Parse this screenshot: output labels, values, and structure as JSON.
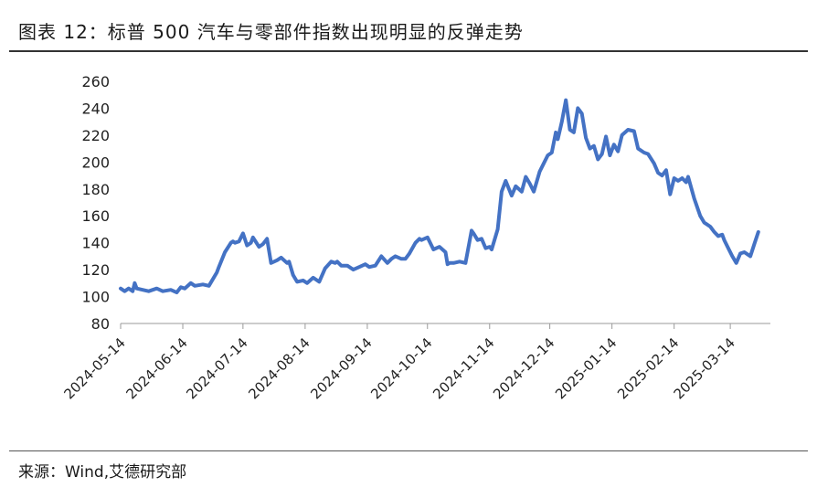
{
  "figure": {
    "title": "图表 12：标普 500 汽车与零部件指数出现明显的反弹走势",
    "source": "来源：Wind,艾德研究部"
  },
  "chart_data": {
    "type": "line",
    "title": "图表 12：标普 500 汽车与零部件指数出现明显的反弹走势",
    "xlabel": "",
    "ylabel": "",
    "ylim": [
      80,
      260
    ],
    "yticks": [
      80,
      100,
      120,
      140,
      160,
      180,
      200,
      220,
      240,
      260
    ],
    "xticks": [
      "2024-05-14",
      "2024-06-14",
      "2024-07-14",
      "2024-08-14",
      "2024-09-14",
      "2024-10-14",
      "2024-11-14",
      "2024-12-14",
      "2025-01-14",
      "2025-02-14",
      "2025-03-14"
    ],
    "grid": false,
    "legend": "none",
    "line_color": "#4472C4",
    "series": [
      {
        "x": [
          "2024-05-14",
          "2024-05-16",
          "2024-05-18",
          "2024-05-20",
          "2024-05-21",
          "2024-05-22",
          "2024-05-25",
          "2024-05-28",
          "2024-06-01",
          "2024-06-04",
          "2024-06-08",
          "2024-06-11",
          "2024-06-13",
          "2024-06-15",
          "2024-06-18",
          "2024-06-20",
          "2024-06-24",
          "2024-06-27",
          "2024-07-01",
          "2024-07-02",
          "2024-07-05",
          "2024-07-08",
          "2024-07-09",
          "2024-07-10",
          "2024-07-12",
          "2024-07-14",
          "2024-07-16",
          "2024-07-18",
          "2024-07-19",
          "2024-07-22",
          "2024-07-24",
          "2024-07-26",
          "2024-07-28",
          "2024-07-31",
          "2024-08-02",
          "2024-08-05",
          "2024-08-06",
          "2024-08-08",
          "2024-08-10",
          "2024-08-13",
          "2024-08-15",
          "2024-08-18",
          "2024-08-21",
          "2024-08-24",
          "2024-08-27",
          "2024-08-29",
          "2024-08-30",
          "2024-09-01",
          "2024-09-04",
          "2024-09-07",
          "2024-09-10",
          "2024-09-13",
          "2024-09-15",
          "2024-09-18",
          "2024-09-21",
          "2024-09-24",
          "2024-09-26",
          "2024-09-28",
          "2024-10-01",
          "2024-10-03",
          "2024-10-05",
          "2024-10-08",
          "2024-10-10",
          "2024-10-11",
          "2024-10-14",
          "2024-10-17",
          "2024-10-20",
          "2024-10-23",
          "2024-10-24",
          "2024-10-25",
          "2024-10-27",
          "2024-10-30",
          "2024-11-02",
          "2024-11-05",
          "2024-11-06",
          "2024-11-08",
          "2024-11-10",
          "2024-11-12",
          "2024-11-14",
          "2024-11-15",
          "2024-11-18",
          "2024-11-20",
          "2024-11-22",
          "2024-11-25",
          "2024-11-27",
          "2024-11-30",
          "2024-12-02",
          "2024-12-04",
          "2024-12-06",
          "2024-12-09",
          "2024-12-11",
          "2024-12-13",
          "2024-12-15",
          "2024-12-17",
          "2024-12-18",
          "2024-12-20",
          "2024-12-22",
          "2024-12-24",
          "2024-12-26",
          "2024-12-28",
          "2024-12-30",
          "2025-01-01",
          "2025-01-03",
          "2025-01-05",
          "2025-01-07",
          "2025-01-09",
          "2025-01-11",
          "2025-01-13",
          "2025-01-15",
          "2025-01-17",
          "2025-01-19",
          "2025-01-22",
          "2025-01-25",
          "2025-01-27",
          "2025-01-30",
          "2025-02-01",
          "2025-02-04",
          "2025-02-06",
          "2025-02-08",
          "2025-02-10",
          "2025-02-12",
          "2025-02-14",
          "2025-02-16",
          "2025-02-18",
          "2025-02-20",
          "2025-02-21",
          "2025-02-24",
          "2025-02-27",
          "2025-03-01",
          "2025-03-04",
          "2025-03-06",
          "2025-03-08",
          "2025-03-10",
          "2025-03-11",
          "2025-03-13",
          "2025-03-15",
          "2025-03-17",
          "2025-03-19",
          "2025-03-21",
          "2025-03-24",
          "2025-03-26",
          "2025-03-28"
        ],
        "values": [
          106,
          104,
          106,
          104,
          110,
          106,
          105,
          104,
          106,
          104,
          105,
          103,
          107,
          106,
          110,
          108,
          109,
          108,
          118,
          122,
          133,
          140,
          141,
          140,
          141,
          147,
          138,
          140,
          144,
          137,
          139,
          143,
          125,
          127,
          129,
          125,
          126,
          116,
          111,
          112,
          110,
          114,
          111,
          121,
          126,
          125,
          126,
          123,
          123,
          120,
          122,
          124,
          122,
          123,
          130,
          125,
          128,
          130,
          128,
          128,
          132,
          140,
          143,
          142,
          144,
          135,
          137,
          133,
          124,
          125,
          125,
          126,
          125,
          149,
          147,
          142,
          143,
          136,
          137,
          135,
          150,
          178,
          186,
          175,
          182,
          178,
          189,
          184,
          178,
          193,
          199,
          205,
          207,
          222,
          217,
          230,
          246,
          224,
          222,
          240,
          236,
          218,
          210,
          212,
          202,
          206,
          219,
          205,
          213,
          208,
          220,
          224,
          223,
          210,
          207,
          206,
          199,
          192,
          190,
          194,
          176,
          188,
          186,
          188,
          185,
          189,
          173,
          160,
          155,
          152,
          148,
          145,
          146,
          142,
          136,
          130,
          125,
          132,
          133,
          130,
          139,
          148
        ]
      }
    ]
  }
}
